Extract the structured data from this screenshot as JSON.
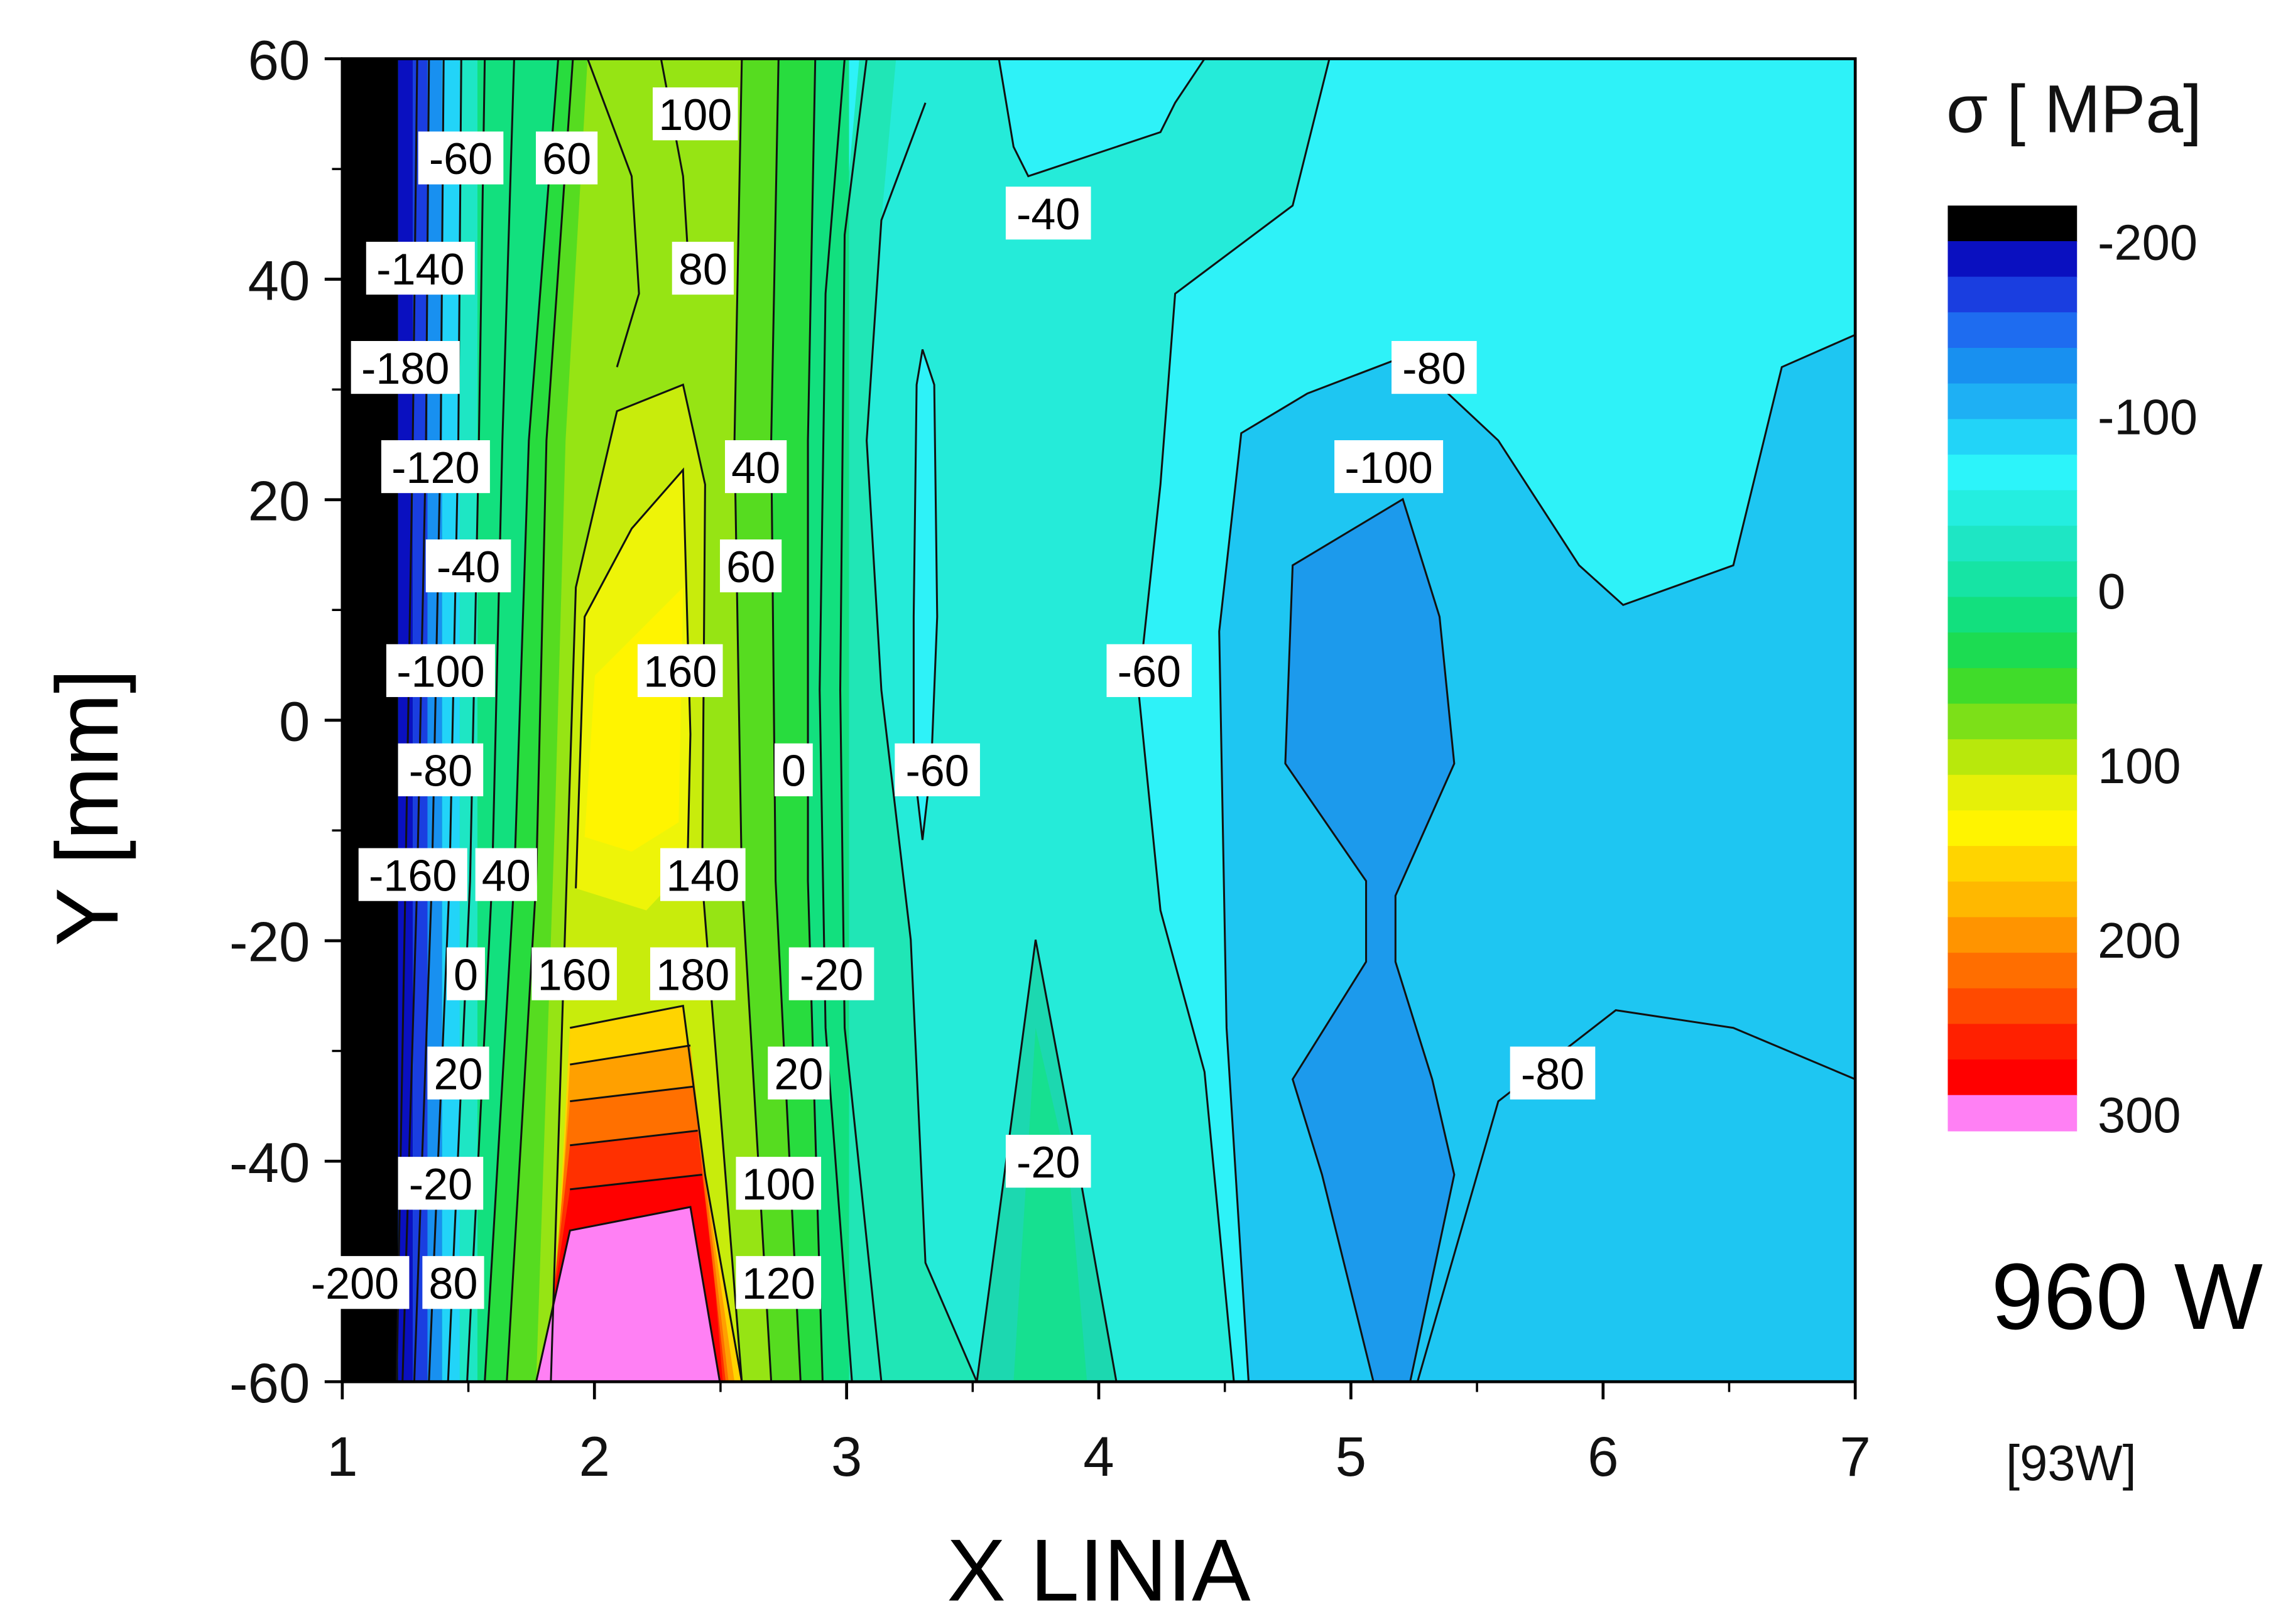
{
  "chart_data": {
    "type": "heatmap",
    "subtype": "filled-contour",
    "xlabel": "X LINIA",
    "ylabel": "Y [mm]",
    "xlim": [
      1,
      7
    ],
    "ylim": [
      -60,
      60
    ],
    "x_ticks": [
      "1",
      "2",
      "3",
      "4",
      "5",
      "6",
      "7"
    ],
    "y_ticks": [
      "60",
      "40",
      "20",
      "0",
      "-20",
      "-40",
      "-60"
    ],
    "colorbar": {
      "title": "σ [ MPa]",
      "range": [
        -220,
        310
      ],
      "tick_labels": [
        "-200",
        "-100",
        "0",
        "100",
        "200",
        "300"
      ],
      "colors": [
        "#000000",
        "#0a10c0",
        "#1a3ee0",
        "#1e6cf0",
        "#1890f0",
        "#1eb0f4",
        "#22d4f8",
        "#2cf4fa",
        "#24eee0",
        "#1ee6c4",
        "#16e4a4",
        "#12e07e",
        "#1cdc52",
        "#40dc2a",
        "#7ce018",
        "#b8e80c",
        "#e6f008",
        "#fff400",
        "#ffd400",
        "#ffb800",
        "#ff9400",
        "#ff6e00",
        "#ff4a00",
        "#ff2000",
        "#ff0000",
        "#ff80f4"
      ]
    },
    "annotations": {
      "power": "960 W",
      "power_note": "[93W]"
    },
    "contour_labels": [
      {
        "text": "100",
        "x": 2.4,
        "y": 55
      },
      {
        "text": "-60",
        "x": 1.47,
        "y": 51
      },
      {
        "text": "60",
        "x": 1.89,
        "y": 51
      },
      {
        "text": "80",
        "x": 2.43,
        "y": 41
      },
      {
        "text": "-140",
        "x": 1.31,
        "y": 41
      },
      {
        "text": "-180",
        "x": 1.25,
        "y": 32
      },
      {
        "text": "-120",
        "x": 1.37,
        "y": 23
      },
      {
        "text": "40",
        "x": 2.64,
        "y": 23
      },
      {
        "text": "-40",
        "x": 1.5,
        "y": 14
      },
      {
        "text": "60",
        "x": 2.62,
        "y": 14
      },
      {
        "text": "-100",
        "x": 1.39,
        "y": 4.5
      },
      {
        "text": "160",
        "x": 2.34,
        "y": 4.5
      },
      {
        "text": "-80",
        "x": 1.39,
        "y": -4.5
      },
      {
        "text": "0",
        "x": 2.79,
        "y": -4.5
      },
      {
        "text": "-60",
        "x": 3.36,
        "y": -4.5
      },
      {
        "text": "-160",
        "x": 1.28,
        "y": -14
      },
      {
        "text": "40",
        "x": 1.65,
        "y": -14
      },
      {
        "text": "140",
        "x": 2.43,
        "y": -14
      },
      {
        "text": "0",
        "x": 1.49,
        "y": -23
      },
      {
        "text": "160",
        "x": 1.92,
        "y": -23
      },
      {
        "text": "180",
        "x": 2.39,
        "y": -23
      },
      {
        "text": "-20",
        "x": 2.94,
        "y": -23
      },
      {
        "text": "20",
        "x": 1.46,
        "y": -32
      },
      {
        "text": "20",
        "x": 2.81,
        "y": -32
      },
      {
        "text": "-20",
        "x": 1.39,
        "y": -42
      },
      {
        "text": "100",
        "x": 2.73,
        "y": -42
      },
      {
        "text": "-20",
        "x": 3.8,
        "y": -40
      },
      {
        "text": "-200",
        "x": 1.05,
        "y": -51
      },
      {
        "text": "80",
        "x": 1.44,
        "y": -51
      },
      {
        "text": "120",
        "x": 2.73,
        "y": -51
      },
      {
        "text": "-40",
        "x": 3.8,
        "y": 46
      },
      {
        "text": "-80",
        "x": 5.33,
        "y": 32
      },
      {
        "text": "-100",
        "x": 5.15,
        "y": 23
      },
      {
        "text": "-60",
        "x": 4.2,
        "y": 4.5
      },
      {
        "text": "-80",
        "x": 5.8,
        "y": -32
      }
    ]
  }
}
